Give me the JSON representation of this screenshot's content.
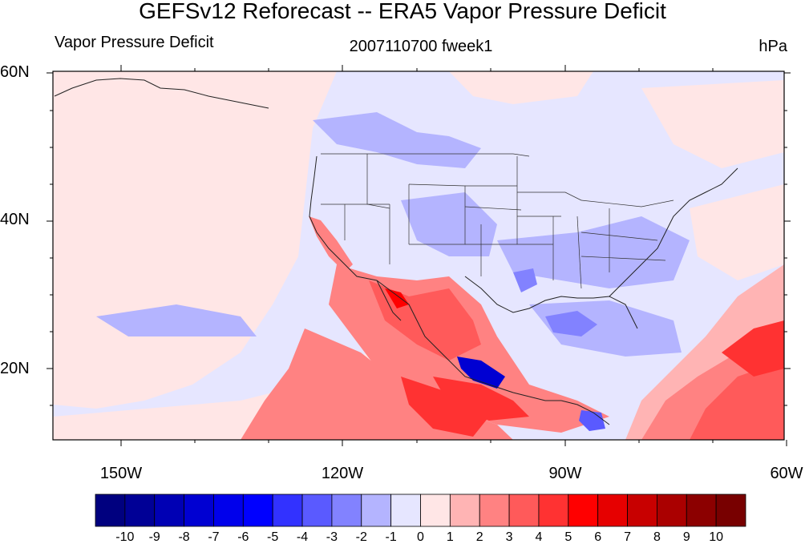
{
  "title": "GEFSv12 Reforecast -- ERA5 Vapor Pressure Deficit",
  "left_subtitle": "Vapor Pressure Deficit",
  "center_subtitle": "2007110700 fweek1",
  "units": "hPa",
  "lat_labels": [
    "60N",
    "40N",
    "20N"
  ],
  "lon_labels": [
    "150W",
    "120W",
    "90W",
    "60W"
  ],
  "colorbar": {
    "labels": [
      "-10",
      "-9",
      "-8",
      "-7",
      "-6",
      "-5",
      "-4",
      "-3",
      "-2",
      "-1",
      "0",
      "1",
      "2",
      "3",
      "4",
      "5",
      "6",
      "7",
      "8",
      "9",
      "10"
    ],
    "colors": [
      "#00007f",
      "#000096",
      "#0000b4",
      "#0000d2",
      "#0000eb",
      "#0000ff",
      "#3232ff",
      "#5a5aff",
      "#8282ff",
      "#b4b4ff",
      "#e6e6ff",
      "#ffe6e6",
      "#ffb4b4",
      "#ff8282",
      "#ff5a5a",
      "#ff3232",
      "#ff0000",
      "#e60000",
      "#c80000",
      "#aa0000",
      "#8c0000",
      "#780000"
    ]
  }
}
